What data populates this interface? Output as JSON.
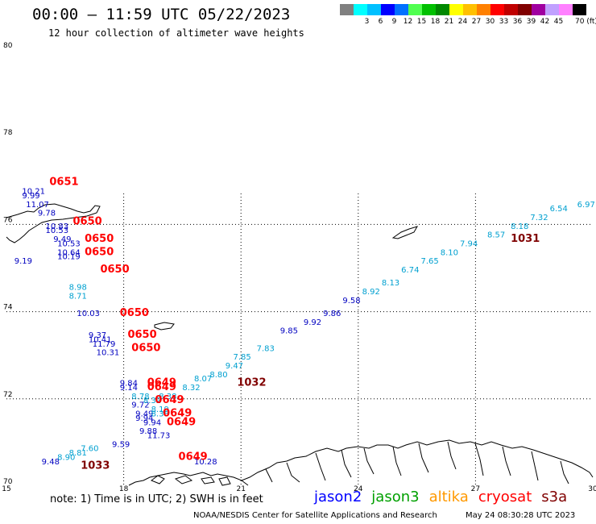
{
  "header": {
    "title": "00:00 – 11:59 UTC 05/22/2023",
    "subtitle": "12 hour collection of altimeter wave heights"
  },
  "color_scale": {
    "unit_label": "70 (ft)",
    "swatches": [
      {
        "label": "",
        "color": "#808080"
      },
      {
        "label": "3",
        "color": "#00ffff"
      },
      {
        "label": "6",
        "color": "#00c0ff"
      },
      {
        "label": "9",
        "color": "#0000ff"
      },
      {
        "label": "12",
        "color": "#0070ff"
      },
      {
        "label": "15",
        "color": "#50ff50"
      },
      {
        "label": "18",
        "color": "#00c000"
      },
      {
        "label": "21",
        "color": "#008800"
      },
      {
        "label": "24",
        "color": "#ffff00"
      },
      {
        "label": "27",
        "color": "#ffc000"
      },
      {
        "label": "30",
        "color": "#ff8000"
      },
      {
        "label": "33",
        "color": "#ff0000"
      },
      {
        "label": "36",
        "color": "#c00000"
      },
      {
        "label": "39",
        "color": "#800000"
      },
      {
        "label": "42",
        "color": "#a000a0"
      },
      {
        "label": "45",
        "color": "#c0a0ff"
      },
      {
        "label": "",
        "color": "#ff80ff"
      },
      {
        "label": "",
        "color": "#000000"
      }
    ]
  },
  "axes": {
    "lat_labels": [
      {
        "lat": 80,
        "text": "80"
      },
      {
        "lat": 78,
        "text": "78"
      },
      {
        "lat": 76,
        "text": "76"
      },
      {
        "lat": 74,
        "text": "74"
      },
      {
        "lat": 72,
        "text": "72"
      },
      {
        "lat": 70,
        "text": "70"
      }
    ],
    "lon_labels": [
      {
        "lon": 15,
        "text": "15"
      },
      {
        "lon": 18,
        "text": "18"
      },
      {
        "lon": 21,
        "text": "21"
      },
      {
        "lon": 24,
        "text": "24"
      },
      {
        "lon": 27,
        "text": "27"
      },
      {
        "lon": 30,
        "text": "30"
      }
    ]
  },
  "chart_data": {
    "type": "scatter",
    "xlim": [
      15,
      30
    ],
    "ylim": [
      70,
      80
    ],
    "series": [
      {
        "name": "jason2",
        "color": "#0000c0",
        "values": [
          {
            "lon": 15.2,
            "lat": 75.1,
            "text": "9.19"
          },
          {
            "lon": 15.4,
            "lat": 76.7,
            "text": "10.21"
          },
          {
            "lon": 15.4,
            "lat": 76.6,
            "text": "9.99"
          },
          {
            "lon": 15.5,
            "lat": 76.4,
            "text": "11.07"
          },
          {
            "lon": 15.8,
            "lat": 76.2,
            "text": "9.78"
          },
          {
            "lon": 16.0,
            "lat": 75.9,
            "text": "10.83"
          },
          {
            "lon": 16.0,
            "lat": 75.8,
            "text": "10.53"
          },
          {
            "lon": 16.2,
            "lat": 75.6,
            "text": "9.49"
          },
          {
            "lon": 16.3,
            "lat": 75.5,
            "text": "10.53"
          },
          {
            "lon": 16.3,
            "lat": 75.3,
            "text": "10.64"
          },
          {
            "lon": 16.3,
            "lat": 75.2,
            "text": "10.19"
          },
          {
            "lon": 16.8,
            "lat": 73.9,
            "text": "10.03"
          },
          {
            "lon": 17.1,
            "lat": 73.4,
            "text": "9.37"
          },
          {
            "lon": 17.1,
            "lat": 73.3,
            "text": "10.41"
          },
          {
            "lon": 17.2,
            "lat": 73.2,
            "text": "11.79"
          },
          {
            "lon": 17.3,
            "lat": 73.0,
            "text": "10.31"
          },
          {
            "lon": 17.9,
            "lat": 72.3,
            "text": "9.84"
          },
          {
            "lon": 17.9,
            "lat": 72.2,
            "text": "9.14"
          },
          {
            "lon": 18.2,
            "lat": 71.8,
            "text": "9.72"
          },
          {
            "lon": 18.3,
            "lat": 71.6,
            "text": "9.49"
          },
          {
            "lon": 18.3,
            "lat": 71.5,
            "text": "9.94"
          },
          {
            "lon": 18.5,
            "lat": 71.4,
            "text": "9.94"
          },
          {
            "lon": 18.4,
            "lat": 71.2,
            "text": "9.88"
          },
          {
            "lon": 18.6,
            "lat": 71.1,
            "text": "11.73"
          },
          {
            "lon": 17.7,
            "lat": 70.9,
            "text": "9.59"
          },
          {
            "lon": 15.9,
            "lat": 70.5,
            "text": "9.48"
          },
          {
            "lon": 23.6,
            "lat": 74.2,
            "text": "9.58"
          },
          {
            "lon": 23.1,
            "lat": 73.9,
            "text": "9.86"
          },
          {
            "lon": 22.6,
            "lat": 73.7,
            "text": "9.92"
          },
          {
            "lon": 22.0,
            "lat": 73.5,
            "text": "9.85"
          },
          {
            "lon": 19.8,
            "lat": 70.5,
            "text": "10.28"
          }
        ]
      },
      {
        "name": "jason3",
        "color": "#00a0d0",
        "values": [
          {
            "lon": 16.6,
            "lat": 74.5,
            "text": "8.98"
          },
          {
            "lon": 16.6,
            "lat": 74.3,
            "text": "8.71"
          },
          {
            "lon": 29.6,
            "lat": 76.4,
            "text": "6.97"
          },
          {
            "lon": 28.9,
            "lat": 76.3,
            "text": "6.54"
          },
          {
            "lon": 28.4,
            "lat": 76.1,
            "text": "7.32"
          },
          {
            "lon": 27.9,
            "lat": 75.9,
            "text": "8.18"
          },
          {
            "lon": 27.3,
            "lat": 75.7,
            "text": "8.57"
          },
          {
            "lon": 26.6,
            "lat": 75.5,
            "text": "7.94"
          },
          {
            "lon": 26.1,
            "lat": 75.3,
            "text": "8.10"
          },
          {
            "lon": 25.6,
            "lat": 75.1,
            "text": "7.65"
          },
          {
            "lon": 25.1,
            "lat": 74.9,
            "text": "6.74"
          },
          {
            "lon": 24.6,
            "lat": 74.6,
            "text": "8.13"
          },
          {
            "lon": 24.1,
            "lat": 74.4,
            "text": "8.92"
          },
          {
            "lon": 21.4,
            "lat": 73.1,
            "text": "7.83"
          },
          {
            "lon": 20.8,
            "lat": 72.9,
            "text": "7.85"
          },
          {
            "lon": 20.6,
            "lat": 72.7,
            "text": "9.47"
          },
          {
            "lon": 20.2,
            "lat": 72.5,
            "text": "8.80"
          },
          {
            "lon": 19.8,
            "lat": 72.4,
            "text": "8.07"
          },
          {
            "lon": 19.5,
            "lat": 72.2,
            "text": "8.32"
          },
          {
            "lon": 18.9,
            "lat": 72.0,
            "text": "8.38"
          },
          {
            "lon": 18.2,
            "lat": 72.0,
            "text": "8.78"
          },
          {
            "lon": 18.5,
            "lat": 71.9,
            "text": "8.32"
          },
          {
            "lon": 18.7,
            "lat": 71.7,
            "text": "8.19"
          },
          {
            "lon": 18.7,
            "lat": 71.6,
            "text": "8.38"
          },
          {
            "lon": 16.9,
            "lat": 70.8,
            "text": "7.60"
          },
          {
            "lon": 16.6,
            "lat": 70.7,
            "text": "8.81"
          },
          {
            "lon": 16.3,
            "lat": 70.6,
            "text": "8.90"
          }
        ]
      },
      {
        "name": "cryosat",
        "color": "#ff0000",
        "values": [
          {
            "lon": 16.1,
            "lat": 76.9,
            "text": "0651"
          },
          {
            "lon": 16.7,
            "lat": 76.0,
            "text": "0650"
          },
          {
            "lon": 17.0,
            "lat": 75.6,
            "text": "0650"
          },
          {
            "lon": 17.0,
            "lat": 75.3,
            "text": "0650"
          },
          {
            "lon": 17.4,
            "lat": 74.9,
            "text": "0650"
          },
          {
            "lon": 17.9,
            "lat": 73.9,
            "text": "0650"
          },
          {
            "lon": 18.1,
            "lat": 73.4,
            "text": "0650"
          },
          {
            "lon": 18.2,
            "lat": 73.1,
            "text": "0650"
          },
          {
            "lon": 18.6,
            "lat": 72.3,
            "text": "0649"
          },
          {
            "lon": 18.6,
            "lat": 72.2,
            "text": "0649"
          },
          {
            "lon": 18.8,
            "lat": 71.9,
            "text": "0649"
          },
          {
            "lon": 19.0,
            "lat": 71.6,
            "text": "0649"
          },
          {
            "lon": 19.1,
            "lat": 71.4,
            "text": "0649"
          },
          {
            "lon": 19.4,
            "lat": 70.6,
            "text": "0649"
          }
        ]
      },
      {
        "name": "s3a",
        "color": "#800000",
        "values": [
          {
            "lon": 27.9,
            "lat": 75.6,
            "text": "1031"
          },
          {
            "lon": 20.9,
            "lat": 72.3,
            "text": "1032"
          },
          {
            "lon": 16.9,
            "lat": 70.4,
            "text": "1033"
          }
        ]
      }
    ]
  },
  "footer": {
    "note": "note: 1) Time is in UTC; 2) SWH is in feet",
    "legend": [
      {
        "label": "jason2",
        "color": "#0000ff"
      },
      {
        "label": "jason3",
        "color": "#00a000"
      },
      {
        "label": "altika",
        "color": "#ff9900"
      },
      {
        "label": "cryosat",
        "color": "#ff0000"
      },
      {
        "label": "s3a",
        "color": "#800000"
      }
    ],
    "credit": "NOAA/NESDIS Center for Satellite Applications and Research",
    "timestamp": "May 24 08:30:28 UTC 2023"
  }
}
